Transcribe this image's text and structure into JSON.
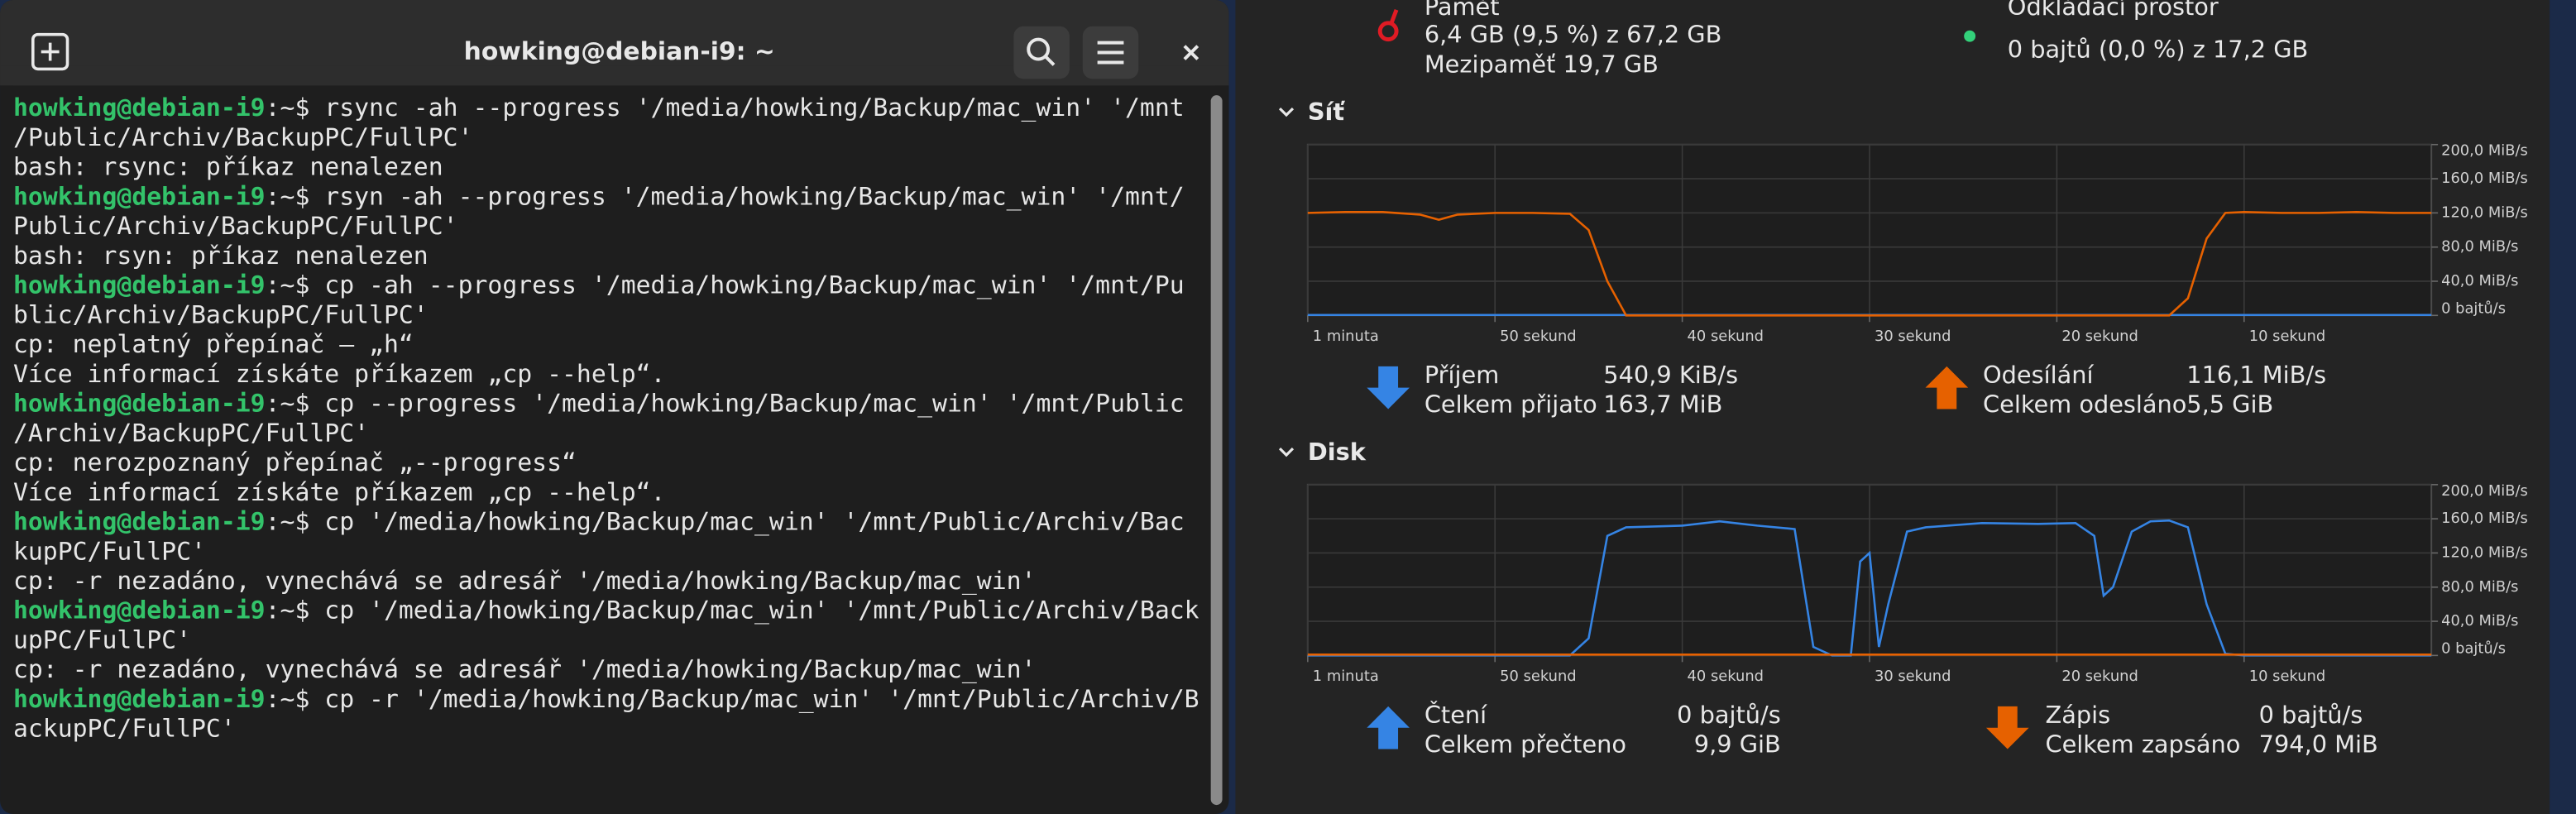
{
  "terminal": {
    "title": "howking@debian-i9: ~",
    "lines": [
      {
        "prompt": "howking@debian-i9",
        "text": ":~$ rsync -ah --progress '/media/howking/Backup/mac_win'  '/mnt"
      },
      {
        "text": "/Public/Archiv/BackupPC/FullPC'"
      },
      {
        "text": "bash: rsync: příkaz nenalezen"
      },
      {
        "prompt": "howking@debian-i9",
        "text": ":~$ rsyn -ah --progress '/media/howking/Backup/mac_win'  '/mnt/"
      },
      {
        "text": "Public/Archiv/BackupPC/FullPC'"
      },
      {
        "text": "bash: rsyn: příkaz nenalezen"
      },
      {
        "prompt": "howking@debian-i9",
        "text": ":~$ cp -ah --progress '/media/howking/Backup/mac_win'  '/mnt/Pu"
      },
      {
        "text": "blic/Archiv/BackupPC/FullPC'"
      },
      {
        "text": "cp: neplatný přepínač – „h“"
      },
      {
        "text": "Více informací získáte příkazem „cp --help“."
      },
      {
        "prompt": "howking@debian-i9",
        "text": ":~$ cp --progress '/media/howking/Backup/mac_win'  '/mnt/Public"
      },
      {
        "text": "/Archiv/BackupPC/FullPC'"
      },
      {
        "text": "cp: nerozpoznaný přepínač „--progress“"
      },
      {
        "text": "Více informací získáte příkazem „cp --help“."
      },
      {
        "prompt": "howking@debian-i9",
        "text": ":~$ cp '/media/howking/Backup/mac_win'  '/mnt/Public/Archiv/Bac"
      },
      {
        "text": "kupPC/FullPC'"
      },
      {
        "text": "cp: -r nezadáno, vynechává se adresář '/media/howking/Backup/mac_win'"
      },
      {
        "prompt": "howking@debian-i9",
        "text": ":~$ cp '/media/howking/Backup/mac_win' '/mnt/Public/Archiv/Back"
      },
      {
        "text": "upPC/FullPC'"
      },
      {
        "text": "cp: -r nezadáno, vynechává se adresář '/media/howking/Backup/mac_win'"
      },
      {
        "prompt": "howking@debian-i9",
        "text": ":~$ cp -r '/media/howking/Backup/mac_win' '/mnt/Public/Archiv/B"
      },
      {
        "text": "ackupPC/FullPC'"
      }
    ]
  },
  "monitor": {
    "memory": {
      "title": "Paměť",
      "usage": "6,4 GB (9,5 %) z 67,2 GB",
      "cache": "Mezipaměť 19,7 GB"
    },
    "swap": {
      "title": "Odkládací prostor",
      "usage": "0 bajtů (0,0 %) z 17,2 GB"
    }
  },
  "chart_data": [
    {
      "type": "line",
      "title": "Síť",
      "x": [
        60,
        58,
        56,
        54,
        53,
        52,
        50,
        48,
        46,
        45,
        44,
        43,
        42,
        40,
        38,
        36,
        34,
        32,
        30,
        28,
        26,
        24,
        22,
        20,
        18,
        16,
        14,
        13,
        12,
        11,
        10,
        8,
        6,
        4,
        2,
        0
      ],
      "xlim": [
        60,
        0
      ],
      "xticks": [
        {
          "value": 60,
          "label": "1 minuta"
        },
        {
          "value": 50,
          "label": "50 sekund"
        },
        {
          "value": 40,
          "label": "40 sekund"
        },
        {
          "value": 30,
          "label": "30 sekund"
        },
        {
          "value": 20,
          "label": "20 sekund"
        },
        {
          "value": 10,
          "label": "10 sekund"
        }
      ],
      "ylim": [
        0,
        200
      ],
      "yticks": [
        {
          "value": 200,
          "label": "200,0 MiB/s"
        },
        {
          "value": 160,
          "label": "160,0 MiB/s"
        },
        {
          "value": 120,
          "label": "120,0 MiB/s"
        },
        {
          "value": 80,
          "label": "80,0 MiB/s"
        },
        {
          "value": 40,
          "label": "40,0 MiB/s"
        },
        {
          "value": 0,
          "label": "0 bajtů/s"
        }
      ],
      "grid": true,
      "series": [
        {
          "name": "Příjem",
          "color": "#3584e4",
          "rate": "540,9 KiB/s",
          "total_label": "Celkem přijato",
          "total": "163,7 MiB",
          "values": [
            0.5,
            0.5,
            0.5,
            0.5,
            0.5,
            0.5,
            0.5,
            0.5,
            0.5,
            0.5,
            0.5,
            0.5,
            0.5,
            0.5,
            0.5,
            0.5,
            0.5,
            0.5,
            0.5,
            0.5,
            0.5,
            0.5,
            0.5,
            0.5,
            0.5,
            0.5,
            0.5,
            0.5,
            0.5,
            0.5,
            0.5,
            0.5,
            0.5,
            0.5,
            0.5,
            0.5
          ]
        },
        {
          "name": "Odesílání",
          "color": "#e66100",
          "rate": "116,1 MiB/s",
          "total_label": "Celkem odesláno",
          "total": "5,5 GiB",
          "values": [
            120,
            121,
            121,
            118,
            112,
            118,
            120,
            120,
            119,
            100,
            40,
            0,
            0,
            0,
            0,
            0,
            0,
            0,
            0,
            0,
            0,
            0,
            0,
            0,
            0,
            0,
            0,
            20,
            90,
            120,
            121,
            120,
            120,
            121,
            120,
            120
          ]
        }
      ]
    },
    {
      "type": "line",
      "title": "Disk",
      "x": [
        60,
        50,
        46,
        45,
        44,
        43,
        40,
        38,
        36,
        34,
        33,
        32,
        31,
        30.5,
        30,
        29.5,
        29,
        28,
        27,
        24,
        21,
        19,
        18,
        17.5,
        17,
        16,
        15,
        14,
        13,
        12,
        11,
        10,
        0
      ],
      "xlim": [
        60,
        0
      ],
      "xticks": [
        {
          "value": 60,
          "label": "1 minuta"
        },
        {
          "value": 50,
          "label": "50 sekund"
        },
        {
          "value": 40,
          "label": "40 sekund"
        },
        {
          "value": 30,
          "label": "30 sekund"
        },
        {
          "value": 20,
          "label": "20 sekund"
        },
        {
          "value": 10,
          "label": "10 sekund"
        }
      ],
      "ylim": [
        0,
        200
      ],
      "yticks": [
        {
          "value": 200,
          "label": "200,0 MiB/s"
        },
        {
          "value": 160,
          "label": "160,0 MiB/s"
        },
        {
          "value": 120,
          "label": "120,0 MiB/s"
        },
        {
          "value": 80,
          "label": "80,0 MiB/s"
        },
        {
          "value": 40,
          "label": "40,0 MiB/s"
        },
        {
          "value": 0,
          "label": "0 bajtů/s"
        }
      ],
      "grid": true,
      "series": [
        {
          "name": "Čtení",
          "color": "#3584e4",
          "rate": "0 bajtů/s",
          "total_label": "Celkem přečteno",
          "total": "9,9 GiB",
          "values": [
            0,
            0,
            0,
            20,
            140,
            150,
            152,
            157,
            152,
            148,
            10,
            0,
            0,
            110,
            120,
            10,
            60,
            145,
            150,
            155,
            154,
            155,
            140,
            70,
            80,
            145,
            157,
            158,
            150,
            60,
            2,
            0,
            0
          ]
        },
        {
          "name": "Zápis",
          "color": "#e66100",
          "rate": "0 bajtů/s",
          "total_label": "Celkem zapsáno",
          "total": "794,0 MiB",
          "values": [
            1,
            1,
            1,
            1,
            1,
            1,
            1,
            1,
            1,
            1,
            1,
            1,
            1,
            1,
            1,
            1,
            1,
            1,
            1,
            1,
            1,
            1,
            1,
            1,
            1,
            1,
            1,
            1,
            1,
            1,
            1,
            1,
            1
          ]
        }
      ]
    }
  ]
}
